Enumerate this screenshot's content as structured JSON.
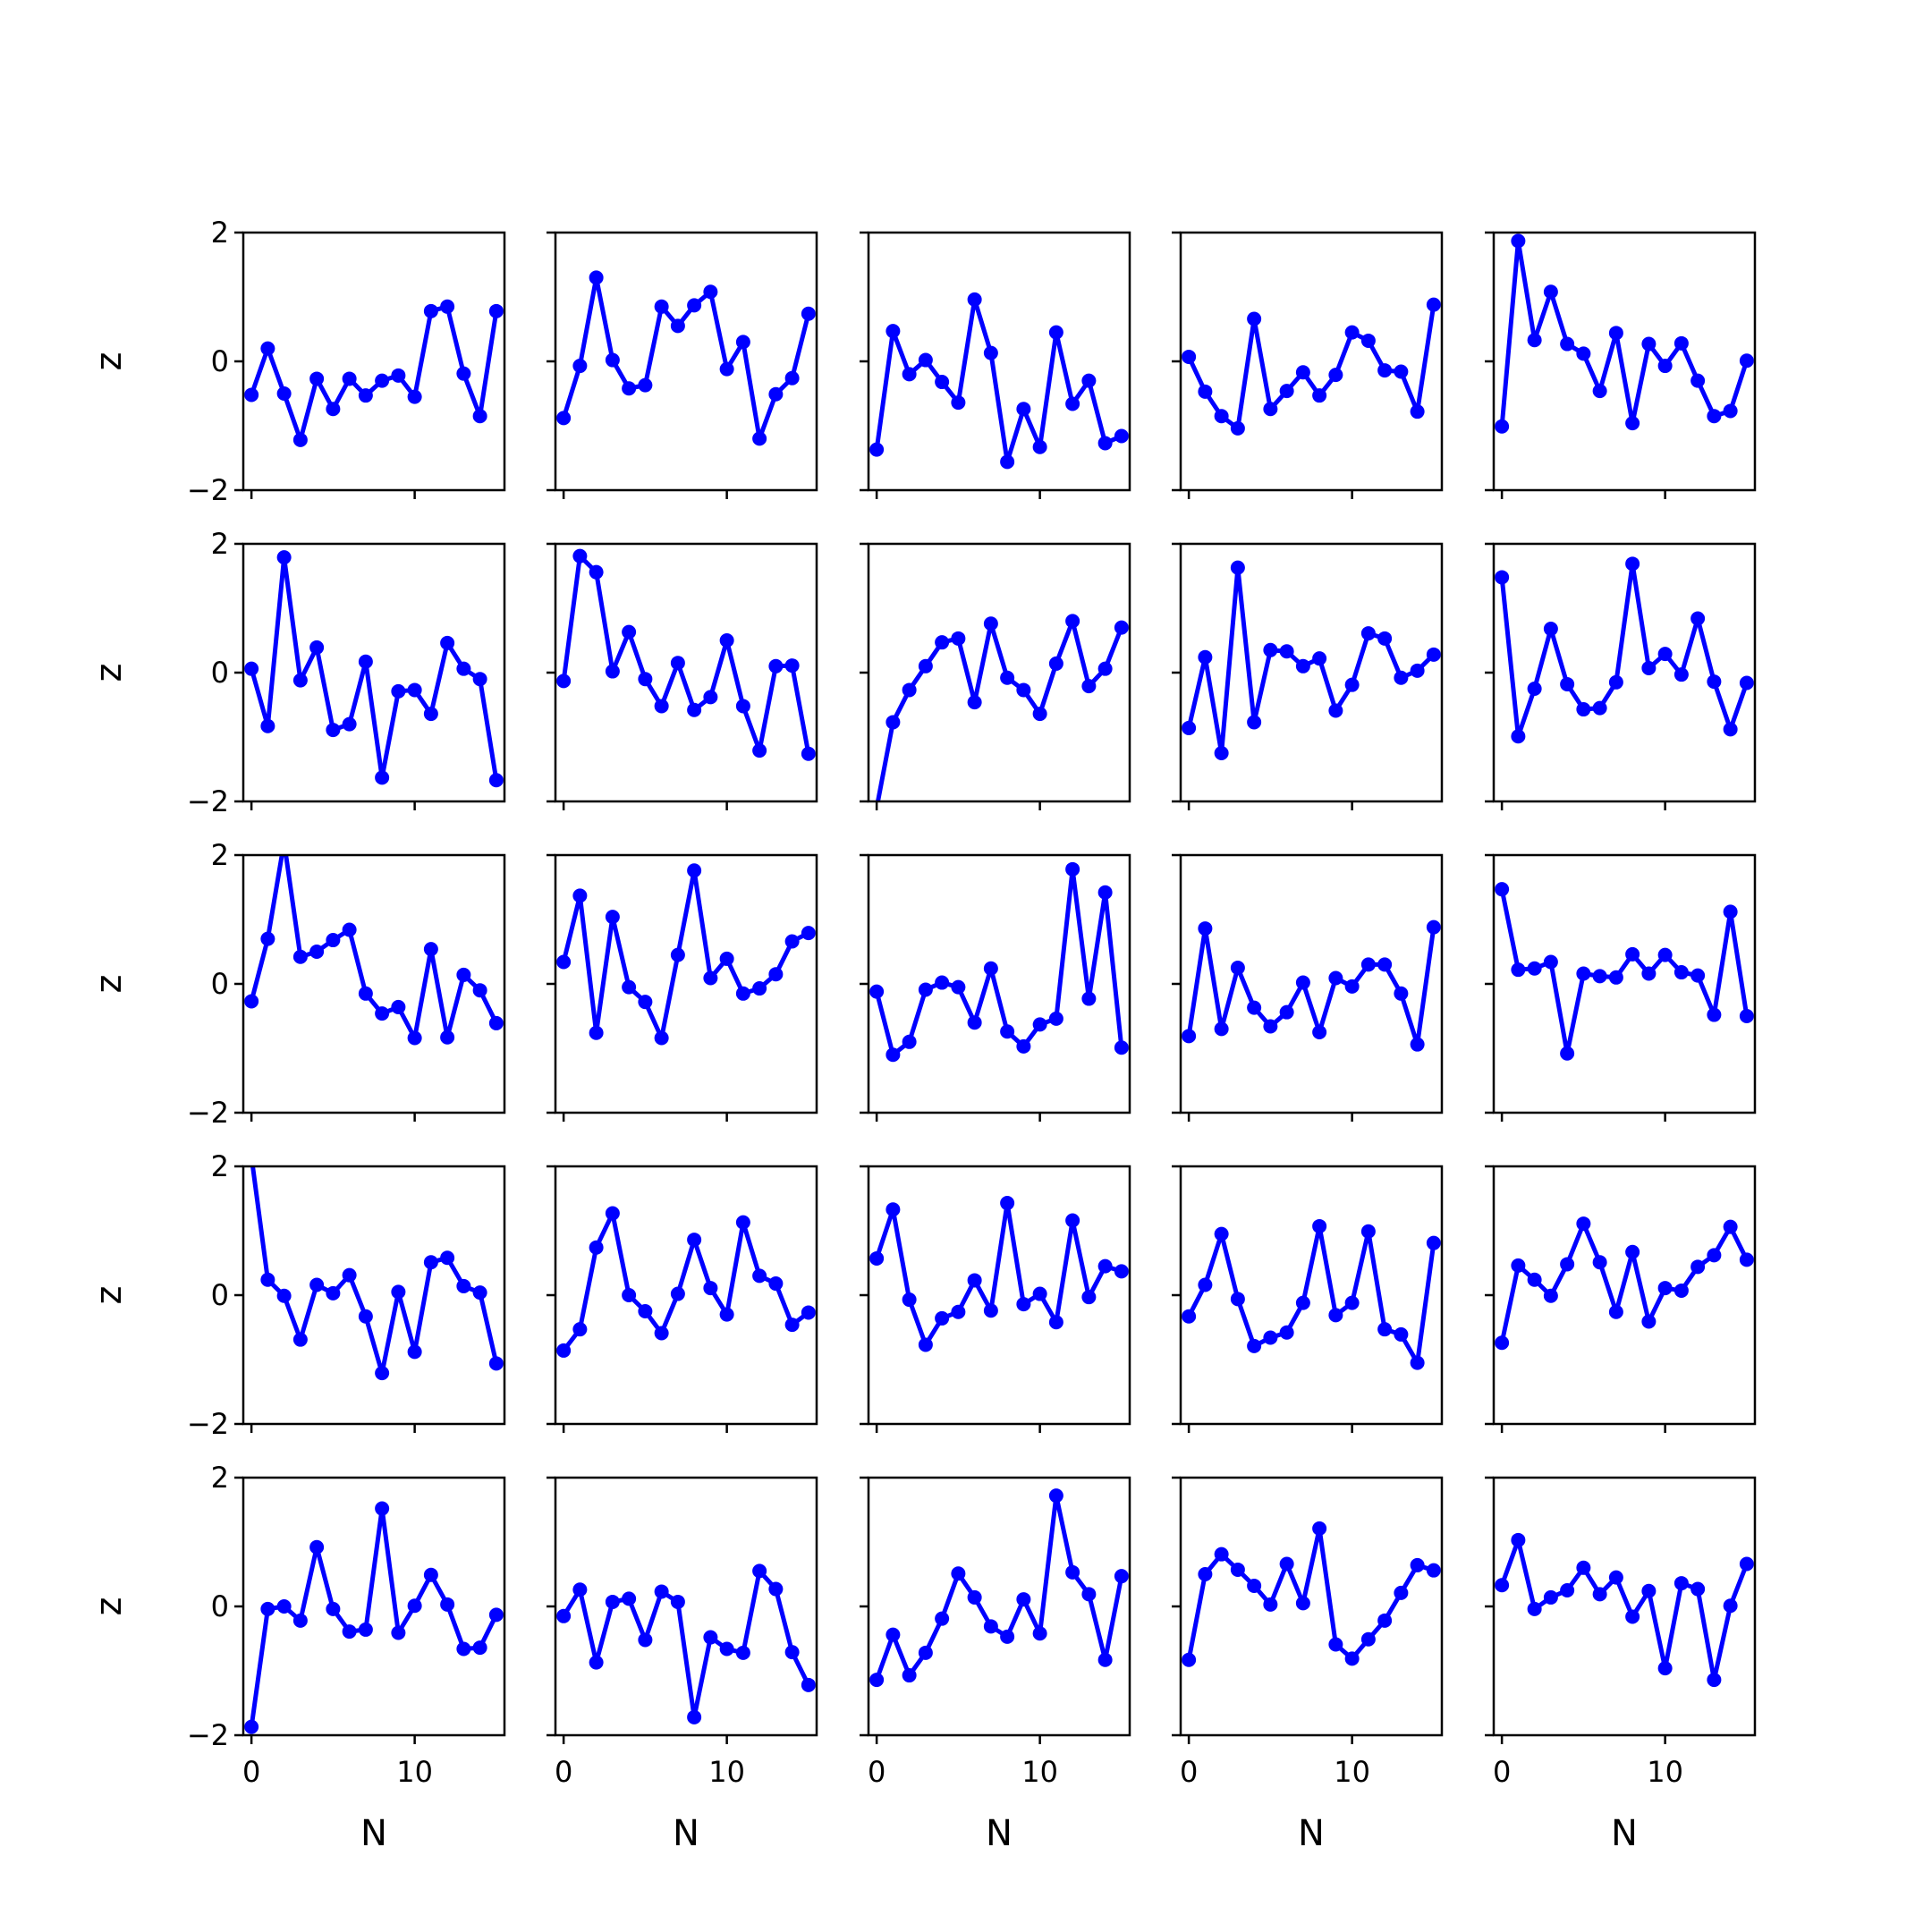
{
  "figure": {
    "line_color": "#0000ff",
    "frame_color": "#000000",
    "background": "#ffffff"
  },
  "chart_data": {
    "type": "line",
    "layout": "grid",
    "rows": 5,
    "cols": 5,
    "markers": true,
    "x": [
      0,
      1,
      2,
      3,
      4,
      5,
      6,
      7,
      8,
      9,
      10,
      11,
      12,
      13,
      14,
      15
    ],
    "xlim": [
      -0.5,
      15.5
    ],
    "ylim": [
      -2,
      2
    ],
    "xticks": [
      0,
      10
    ],
    "yticks": [
      -2,
      0,
      2
    ],
    "xtick_labels": [
      "0",
      "10"
    ],
    "ytick_labels": [
      "−2",
      "0",
      "2"
    ],
    "xlabel": "N",
    "ylabel": "z",
    "grid": false,
    "legend": "none",
    "panels": [
      [
        -0.52,
        0.2,
        -0.5,
        -1.22,
        -0.27,
        -0.74,
        -0.27,
        -0.53,
        -0.3,
        -0.22,
        -0.55,
        0.78,
        0.85,
        -0.19,
        -0.85,
        0.78
      ],
      [
        -0.88,
        -0.07,
        1.3,
        0.02,
        -0.42,
        -0.37,
        0.85,
        0.55,
        0.87,
        1.08,
        -0.12,
        0.3,
        -1.2,
        -0.51,
        -0.26,
        0.74
      ],
      [
        -1.37,
        0.47,
        -0.2,
        0.02,
        -0.32,
        -0.64,
        0.96,
        0.13,
        -1.56,
        -0.74,
        -1.33,
        0.45,
        -0.66,
        -0.3,
        -1.27,
        -1.16
      ],
      [
        0.07,
        -0.47,
        -0.85,
        -1.04,
        0.66,
        -0.74,
        -0.46,
        -0.17,
        -0.53,
        -0.21,
        0.45,
        0.32,
        -0.14,
        -0.16,
        -0.78,
        0.88
      ],
      [
        -1.01,
        1.87,
        0.33,
        1.08,
        0.27,
        0.12,
        -0.46,
        0.44,
        -0.96,
        0.27,
        -0.07,
        0.28,
        -0.3,
        -0.85,
        -0.77,
        0.01
      ]
    ],
    "panels_row2": [
      [
        0.06,
        -0.83,
        1.79,
        -0.12,
        0.39,
        -0.89,
        -0.8,
        0.17,
        -1.63,
        -0.29,
        -0.27,
        -0.64,
        0.46,
        0.06,
        -0.1,
        -1.67
      ],
      [
        -0.13,
        1.81,
        1.56,
        0.02,
        0.63,
        -0.1,
        -0.52,
        0.15,
        -0.58,
        -0.38,
        0.5,
        -0.52,
        -1.21,
        0.1,
        0.11,
        -1.26
      ],
      [
        -2.1,
        -0.77,
        -0.27,
        0.1,
        0.47,
        0.53,
        -0.46,
        0.76,
        -0.08,
        -0.27,
        -0.64,
        0.14,
        0.8,
        -0.21,
        0.06,
        0.7
      ],
      [
        -0.86,
        0.24,
        -1.25,
        1.63,
        -0.77,
        0.35,
        0.33,
        0.1,
        0.22,
        -0.59,
        -0.19,
        0.61,
        0.53,
        -0.08,
        0.03,
        0.28
      ],
      [
        1.48,
        -0.99,
        -0.25,
        0.68,
        -0.18,
        -0.57,
        -0.55,
        -0.15,
        1.69,
        0.07,
        0.29,
        -0.03,
        0.84,
        -0.14,
        -0.88,
        -0.16
      ]
    ],
    "panels_row3": [
      [
        -0.27,
        0.7,
        2.2,
        0.42,
        0.5,
        0.68,
        0.84,
        -0.15,
        -0.46,
        -0.36,
        -0.84,
        0.54,
        -0.83,
        0.14,
        -0.1,
        -0.61
      ],
      [
        0.34,
        1.37,
        -0.76,
        1.04,
        -0.05,
        -0.28,
        -0.84,
        0.45,
        1.76,
        0.09,
        0.39,
        -0.15,
        -0.07,
        0.15,
        0.66,
        0.79
      ],
      [
        -0.12,
        -1.1,
        -0.9,
        -0.09,
        0.02,
        -0.05,
        -0.6,
        0.24,
        -0.74,
        -0.97,
        -0.63,
        -0.54,
        1.78,
        -0.23,
        1.42,
        -0.99
      ],
      [
        -0.81,
        0.86,
        -0.7,
        0.25,
        -0.37,
        -0.66,
        -0.44,
        0.02,
        -0.75,
        0.09,
        -0.04,
        0.3,
        0.3,
        -0.15,
        -0.94,
        0.88
      ],
      [
        1.47,
        0.22,
        0.24,
        0.34,
        -1.08,
        0.16,
        0.12,
        0.1,
        0.46,
        0.16,
        0.45,
        0.18,
        0.13,
        -0.48,
        1.12,
        -0.5
      ]
    ],
    "panels_row4": [
      [
        2.15,
        0.24,
        -0.01,
        -0.69,
        0.16,
        0.03,
        0.31,
        -0.33,
        -1.21,
        0.05,
        -0.88,
        0.51,
        0.58,
        0.14,
        0.04,
        -1.06
      ],
      [
        -0.86,
        -0.53,
        0.74,
        1.27,
        0.0,
        -0.25,
        -0.59,
        0.02,
        0.86,
        0.11,
        -0.3,
        1.13,
        0.3,
        0.18,
        -0.46,
        -0.27
      ],
      [
        0.57,
        1.33,
        -0.07,
        -0.77,
        -0.36,
        -0.26,
        0.23,
        -0.24,
        1.43,
        -0.14,
        0.02,
        -0.42,
        1.16,
        -0.03,
        0.45,
        0.37
      ],
      [
        -0.33,
        0.16,
        0.95,
        -0.06,
        -0.79,
        -0.66,
        -0.58,
        -0.12,
        1.07,
        -0.31,
        -0.12,
        0.99,
        -0.53,
        -0.61,
        -1.05,
        0.81
      ],
      [
        -0.74,
        0.46,
        0.24,
        -0.01,
        0.48,
        1.11,
        0.51,
        -0.26,
        0.67,
        -0.41,
        0.11,
        0.07,
        0.44,
        0.62,
        1.06,
        0.55
      ]
    ],
    "panels_row5": [
      [
        -1.87,
        -0.04,
        0.0,
        -0.22,
        0.92,
        -0.04,
        -0.39,
        -0.36,
        1.52,
        -0.41,
        0.01,
        0.49,
        0.03,
        -0.66,
        -0.64,
        -0.13
      ],
      [
        -0.15,
        0.26,
        -0.87,
        0.07,
        0.12,
        -0.52,
        0.23,
        0.07,
        -1.72,
        -0.48,
        -0.66,
        -0.72,
        0.55,
        0.27,
        -0.71,
        -1.22
      ],
      [
        -1.14,
        -0.44,
        -1.07,
        -0.72,
        -0.19,
        0.51,
        0.14,
        -0.31,
        -0.47,
        0.11,
        -0.42,
        1.72,
        0.53,
        0.19,
        -0.83,
        0.47
      ],
      [
        -0.83,
        0.5,
        0.81,
        0.57,
        0.32,
        0.03,
        0.66,
        0.05,
        1.21,
        -0.59,
        -0.81,
        -0.51,
        -0.22,
        0.21,
        0.64,
        0.56
      ],
      [
        0.33,
        1.03,
        -0.04,
        0.14,
        0.25,
        0.6,
        0.19,
        0.45,
        -0.16,
        0.24,
        -0.96,
        0.36,
        0.27,
        -1.14,
        0.01,
        0.66
      ]
    ]
  }
}
